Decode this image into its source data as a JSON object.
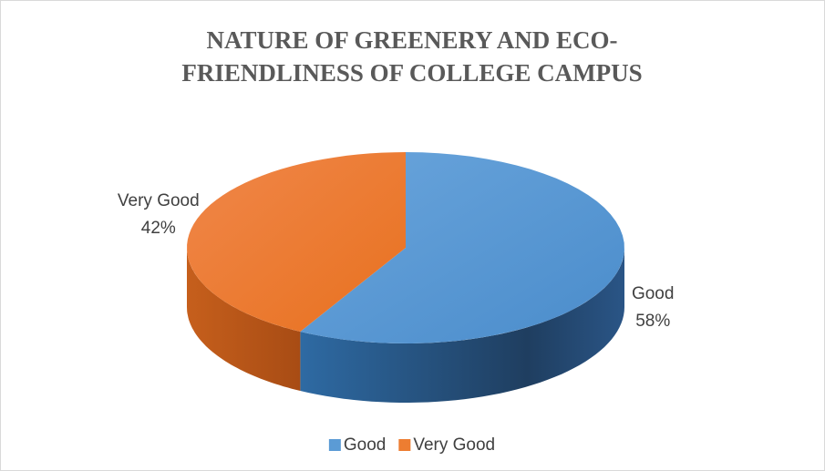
{
  "chart_data": {
    "type": "pie3d",
    "title": "NATURE OF GREENERY AND ECO-FRIENDLINESS OF COLLEGE CAMPUS",
    "categories": [
      "Good",
      "Very Good"
    ],
    "values": [
      58,
      42
    ],
    "value_labels": [
      "58%",
      "42%"
    ],
    "colors": [
      "#5b9bd5",
      "#ed7d31"
    ],
    "legend": "bottom"
  }
}
